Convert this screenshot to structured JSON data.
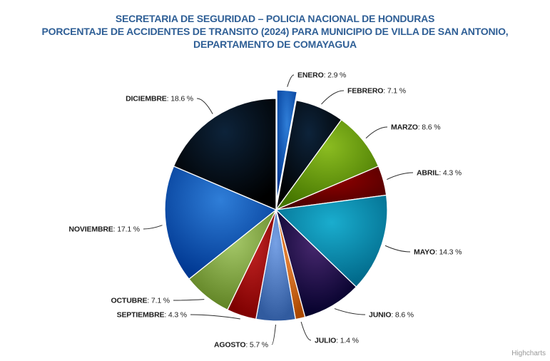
{
  "title": {
    "lines": [
      "SECRETARIA DE SEGURIDAD – POLICIA NACIONAL DE HONDURAS",
      "PORCENTAJE DE ACCIDENTES DE TRANSITO (2024) PARA MUNICIPIO DE VILLA DE SAN ANTONIO,",
      "DEPARTAMENTO DE COMAYAGUA"
    ],
    "color": "#2f5f96"
  },
  "credits": {
    "label": "Highcharts",
    "color": "#999999"
  },
  "chart_data": {
    "type": "pie",
    "title": "SECRETARIA DE SEGURIDAD – POLICIA NACIONAL DE HONDURAS PORCENTAJE DE ACCIDENTES DE TRANSITO (2024) PARA MUNICIPIO DE VILLA DE SAN ANTONIO, DEPARTAMENTO DE COMAYAGUA",
    "unit": "%",
    "start_angle_deg": 0,
    "direction": "clockwise",
    "label_format": "{name}: {value} %",
    "categories": [
      "ENERO",
      "FEBRERO",
      "MARZO",
      "ABRIL",
      "MAYO",
      "JUNIO",
      "JULIO",
      "AGOSTO",
      "SEPTIEMBRE",
      "OCTUBRE",
      "NOVIEMBRE",
      "DICIEMBRE"
    ],
    "values": [
      2.9,
      7.1,
      8.6,
      4.3,
      14.3,
      8.6,
      1.4,
      5.7,
      4.3,
      7.1,
      17.1,
      18.6
    ],
    "colors": [
      "#2f7ed8",
      "#0d233a",
      "#8bbc21",
      "#910000",
      "#1aadce",
      "#492970",
      "#f28f43",
      "#77a1e5",
      "#c42525",
      "#a6c96a",
      "#2f7ed8",
      "#0d233a"
    ],
    "sliced": [
      true,
      false,
      false,
      false,
      false,
      false,
      false,
      false,
      false,
      false,
      false,
      false
    ],
    "gradient_darken": 70,
    "border_color": "#ffffff",
    "connector_color": "#2b2b2b",
    "label_color": "#1c1c1c",
    "legend": "off"
  }
}
